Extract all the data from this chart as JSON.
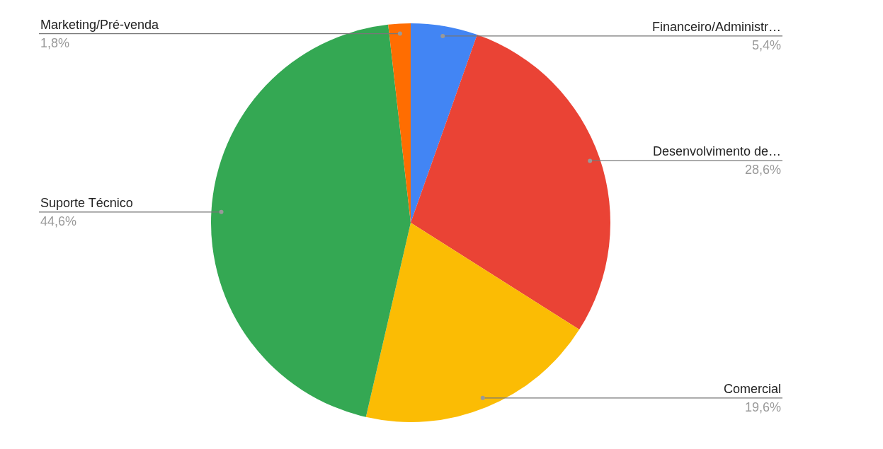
{
  "chart_data": {
    "type": "pie",
    "categories": [
      "Financeiro/Administr…",
      "Desenvolvimento de…",
      "Comercial",
      "Suporte Técnico",
      "Marketing/Pré-venda"
    ],
    "values": [
      5.4,
      28.6,
      19.6,
      44.6,
      1.8
    ],
    "colors": [
      "#4285f4",
      "#ea4335",
      "#fbbc04",
      "#34a853",
      "#ff6d01"
    ],
    "value_labels": [
      "5,4%",
      "28,6%",
      "19,6%",
      "44,6%",
      "1,8%"
    ]
  }
}
